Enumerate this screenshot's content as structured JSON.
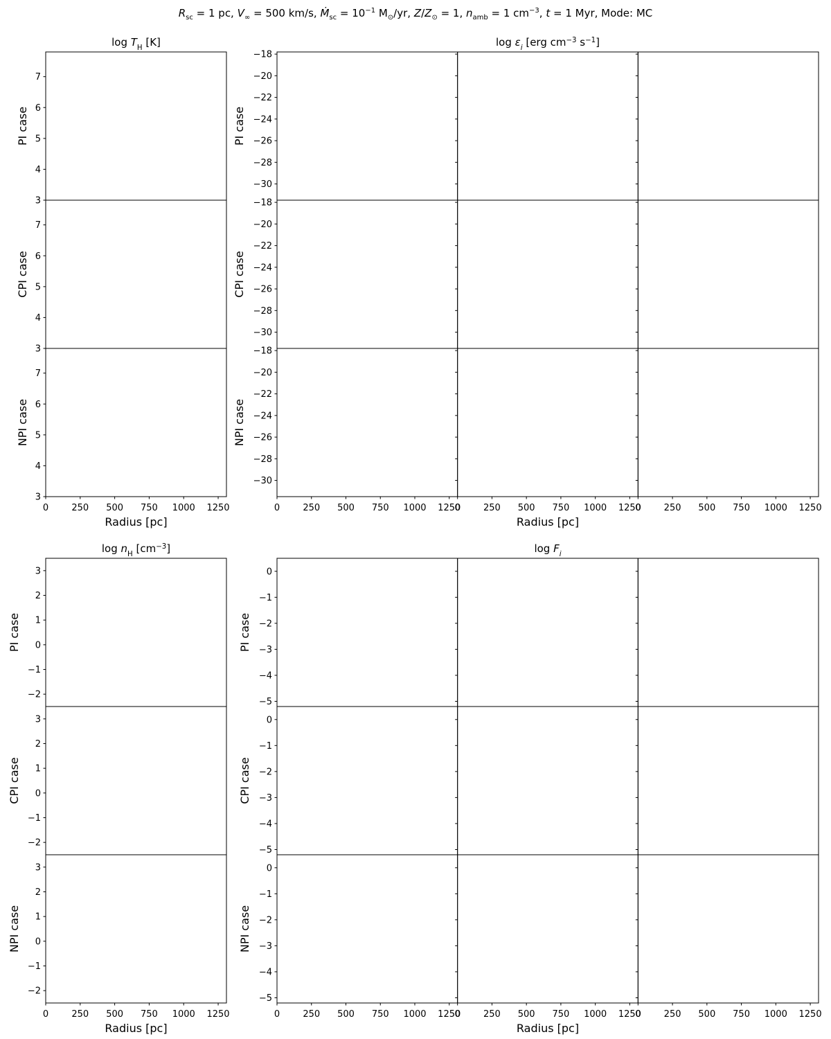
{
  "suptitle": {
    "parts": [
      {
        "t": "R",
        "i": true
      },
      {
        "t": "sc",
        "sub": true
      },
      {
        "t": " = 1 pc, "
      },
      {
        "t": "V",
        "i": true
      },
      {
        "t": "∞",
        "sub": true
      },
      {
        "t": " = 500 km/s, "
      },
      {
        "t": "Ṁ",
        "i": true
      },
      {
        "t": "sc",
        "sub": true
      },
      {
        "t": " = 10"
      },
      {
        "t": "−1",
        "sup": true
      },
      {
        "t": " M"
      },
      {
        "t": "⊙",
        "sub": true
      },
      {
        "t": "/yr, "
      },
      {
        "t": "Z",
        "i": true
      },
      {
        "t": "/"
      },
      {
        "t": "Z",
        "i": true
      },
      {
        "t": "⊙",
        "sub": true
      },
      {
        "t": " = 1, "
      },
      {
        "t": "n",
        "i": true
      },
      {
        "t": "amb",
        "sub": true
      },
      {
        "t": " = 1 cm"
      },
      {
        "t": "−3",
        "sup": true
      },
      {
        "t": ", "
      },
      {
        "t": "t",
        "i": true
      },
      {
        "t": " = 1 Myr, Mode: MC"
      }
    ]
  },
  "chart_data": [
    {
      "type": "line",
      "title": "log T_H [K]",
      "title_parts": [
        {
          "t": "log "
        },
        {
          "t": "T",
          "i": true
        },
        {
          "t": "H",
          "sub": true
        },
        {
          "t": " [K]"
        }
      ],
      "xlabel": "Radius [pc]",
      "row_labels": [
        "PI case",
        "CPI case",
        "NPI case"
      ],
      "xlim": [
        0,
        1310
      ],
      "xticks": [
        0,
        250,
        500,
        750,
        1000,
        1250
      ],
      "ylim": [
        3,
        7.8
      ],
      "yticks": [
        3,
        4,
        5,
        6,
        7
      ],
      "columns": 1,
      "series": []
    },
    {
      "type": "line",
      "title": "log ε_i [erg cm^-3 s^-1]",
      "title_parts": [
        {
          "t": "log "
        },
        {
          "t": "ε",
          "i": true
        },
        {
          "t": "i",
          "sub": true,
          "i": true
        },
        {
          "t": " [erg cm"
        },
        {
          "t": "−3",
          "sup": true
        },
        {
          "t": " s"
        },
        {
          "t": "−1",
          "sup": true
        },
        {
          "t": "]"
        }
      ],
      "xlabel": "Radius [pc]",
      "row_labels": [
        "PI case",
        "CPI case",
        "NPI case"
      ],
      "xlim": [
        0,
        1310
      ],
      "xticks": [
        0,
        250,
        500,
        750,
        1000,
        1250
      ],
      "ylim": [
        -31.5,
        -17.8
      ],
      "yticks": [
        -30,
        -28,
        -26,
        -24,
        -22,
        -20,
        -18
      ],
      "columns": 3,
      "series": []
    },
    {
      "type": "line",
      "title": "log n_H [cm^-3]",
      "title_parts": [
        {
          "t": "log "
        },
        {
          "t": "n",
          "i": true
        },
        {
          "t": "H",
          "sub": true
        },
        {
          "t": " [cm"
        },
        {
          "t": "−3",
          "sup": true
        },
        {
          "t": "]"
        }
      ],
      "xlabel": "Radius [pc]",
      "row_labels": [
        "PI case",
        "CPI case",
        "NPI case"
      ],
      "xlim": [
        0,
        1310
      ],
      "xticks": [
        0,
        250,
        500,
        750,
        1000,
        1250
      ],
      "ylim": [
        -2.5,
        3.5
      ],
      "yticks": [
        -2,
        -1,
        0,
        1,
        2,
        3
      ],
      "columns": 1,
      "series": []
    },
    {
      "type": "line",
      "title": "log F_i",
      "title_parts": [
        {
          "t": "log "
        },
        {
          "t": "F",
          "i": true
        },
        {
          "t": "i",
          "sub": true,
          "i": true
        }
      ],
      "xlabel": "Radius [pc]",
      "row_labels": [
        "PI case",
        "CPI case",
        "NPI case"
      ],
      "xlim": [
        0,
        1310
      ],
      "xticks": [
        0,
        250,
        500,
        750,
        1000,
        1250
      ],
      "ylim": [
        -5.2,
        0.5
      ],
      "yticks": [
        -5,
        -4,
        -3,
        -2,
        -1,
        0
      ],
      "columns": 3,
      "series": []
    }
  ]
}
